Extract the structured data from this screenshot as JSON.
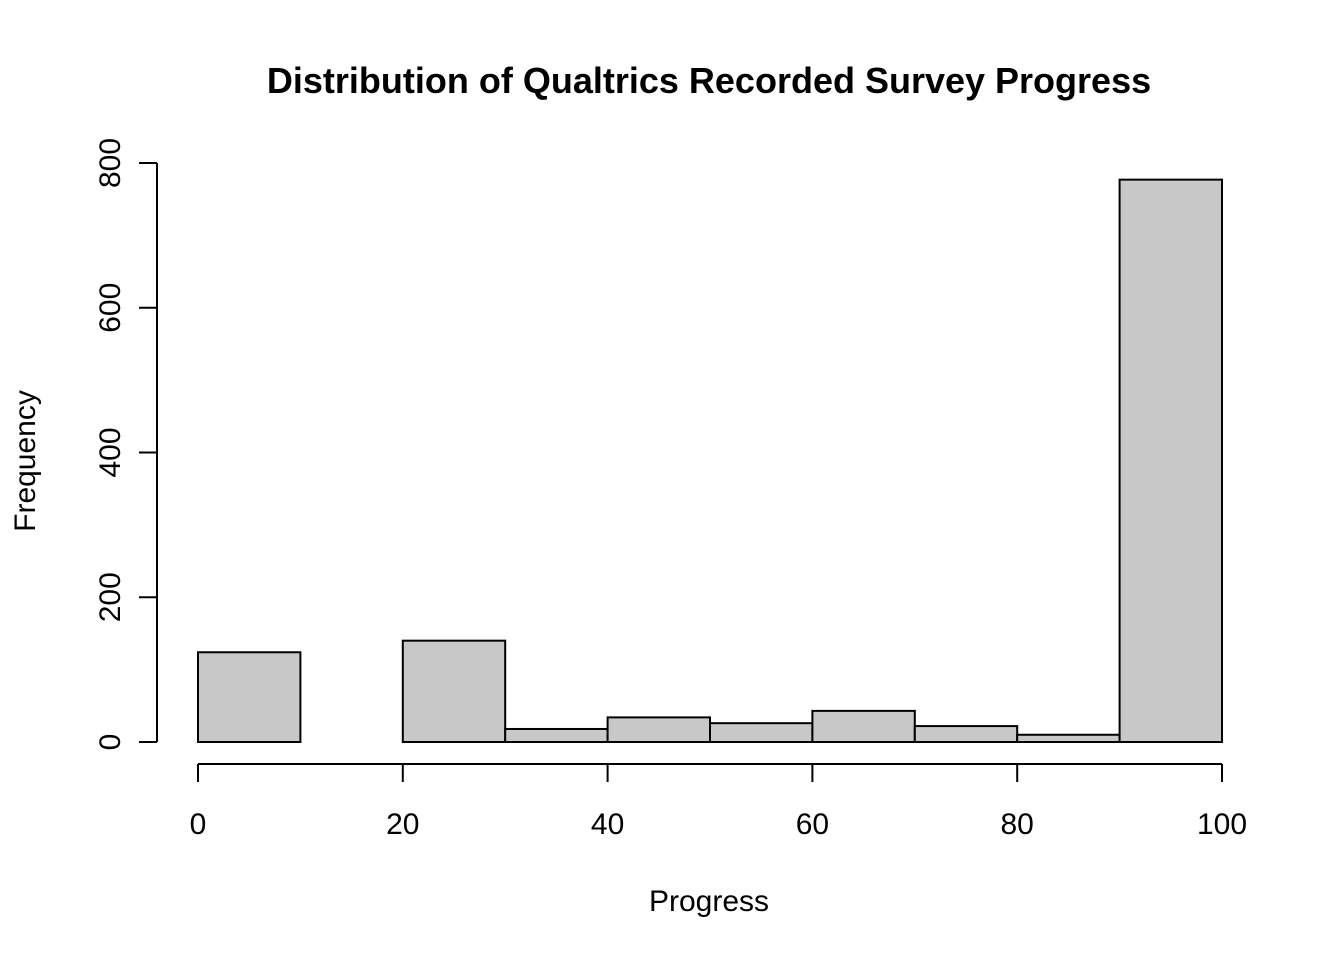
{
  "chart_data": {
    "type": "bar",
    "title": "Distribution of Qualtrics Recorded Survey Progress",
    "xlabel": "Progress",
    "ylabel": "Frequency",
    "bins": [
      {
        "from": 0,
        "to": 10,
        "count": 124
      },
      {
        "from": 10,
        "to": 20,
        "count": 0
      },
      {
        "from": 20,
        "to": 30,
        "count": 140
      },
      {
        "from": 30,
        "to": 40,
        "count": 18
      },
      {
        "from": 40,
        "to": 50,
        "count": 34
      },
      {
        "from": 50,
        "to": 60,
        "count": 26
      },
      {
        "from": 60,
        "to": 70,
        "count": 43
      },
      {
        "from": 70,
        "to": 80,
        "count": 22
      },
      {
        "from": 80,
        "to": 90,
        "count": 10
      },
      {
        "from": 90,
        "to": 100,
        "count": 777
      }
    ],
    "xlim": [
      0,
      100
    ],
    "ylim": [
      0,
      800
    ],
    "x_ticks": [
      0,
      20,
      40,
      60,
      80,
      100
    ],
    "x_tick_labels": [
      "0",
      "20",
      "40",
      "60",
      "80",
      "100"
    ],
    "y_ticks": [
      0,
      200,
      400,
      600,
      800
    ],
    "y_tick_labels": [
      "0",
      "200",
      "400",
      "600",
      "800"
    ],
    "bar_color": "#c8c8c8",
    "edge_color": "#000000",
    "grid": false,
    "legend": "none"
  }
}
